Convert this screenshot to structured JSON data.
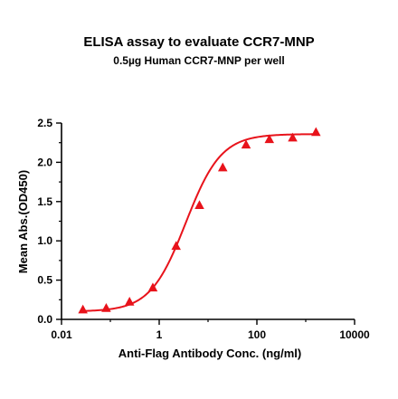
{
  "chart_data": {
    "type": "scatter",
    "title": "ELISA assay to evaluate CCR7-MNP",
    "subtitle": "0.5µg Human CCR7-MNP per well",
    "xlabel": "Anti-Flag Antibody Conc. (ng/ml)",
    "ylabel": "Mean Abs.(OD450)",
    "xscale": "log",
    "xlim": [
      0.01,
      10000
    ],
    "ylim": [
      0,
      2.5
    ],
    "x_ticks": [
      0.01,
      1,
      100,
      10000
    ],
    "x_tick_labels": [
      "0.01",
      "1",
      "100",
      "10000"
    ],
    "y_ticks": [
      0.0,
      0.5,
      1.0,
      1.5,
      2.0,
      2.5
    ],
    "y_tick_labels": [
      "0.0",
      "0.5",
      "1.0",
      "1.5",
      "2.0",
      "2.5"
    ],
    "grid": false,
    "color": "#e8131b",
    "series": [
      {
        "marker": "triangle",
        "x": [
          0.0274,
          0.0823,
          0.247,
          0.741,
          2.22,
          6.67,
          20,
          60,
          180,
          540,
          1620
        ],
        "y": [
          0.12,
          0.14,
          0.22,
          0.4,
          0.93,
          1.45,
          1.93,
          2.22,
          2.29,
          2.31,
          2.38
        ]
      }
    ],
    "fit_curve": {
      "model": "4PL",
      "bottom": 0.1,
      "top": 2.36,
      "ec50": 3.5,
      "hill": 1.2
    }
  }
}
